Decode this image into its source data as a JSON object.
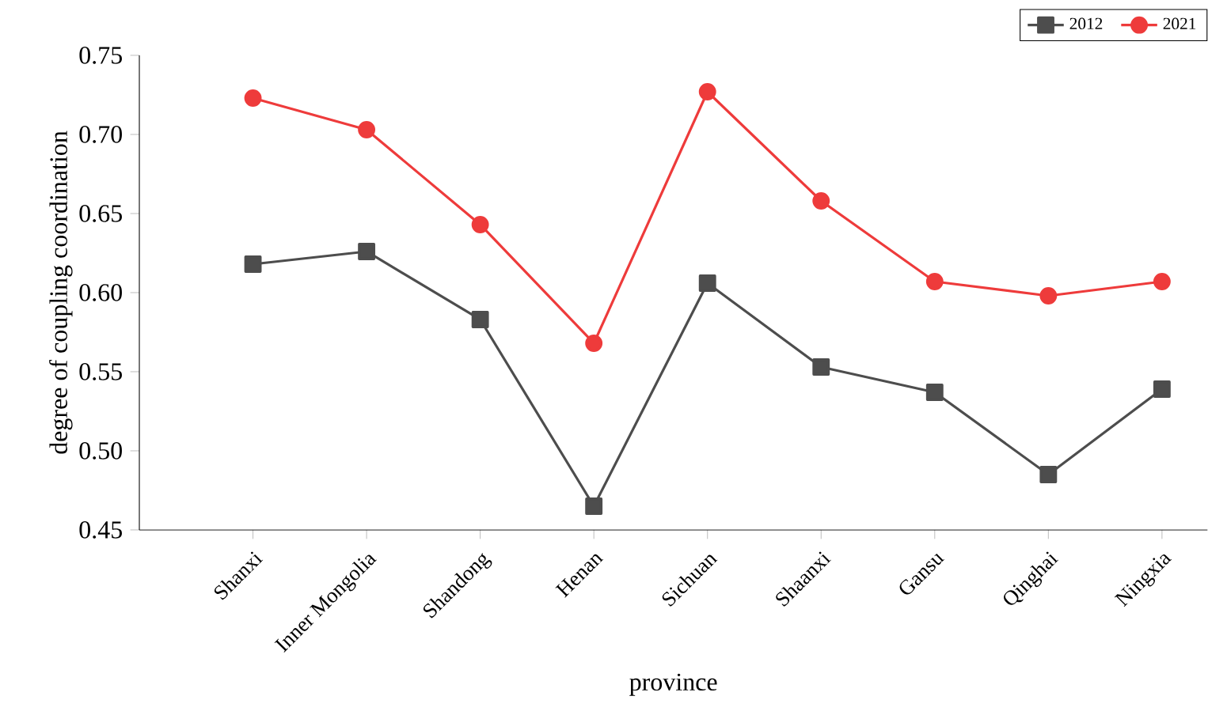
{
  "chart_data": {
    "type": "line",
    "xlabel": "province",
    "ylabel": "degree of coupling coordination",
    "categories": [
      "Shanxi",
      "Inner Mongolia",
      "Shandong",
      "Henan",
      "Sichuan",
      "Shaanxi",
      "Gansu",
      "Qinghai",
      "Ningxia"
    ],
    "series": [
      {
        "name": "2012",
        "color": "#4d4d4d",
        "marker": "square",
        "values": [
          0.618,
          0.626,
          0.583,
          0.465,
          0.606,
          0.553,
          0.537,
          0.485,
          0.539
        ]
      },
      {
        "name": "2021",
        "color": "#ee3b3b",
        "marker": "circle",
        "values": [
          0.723,
          0.703,
          0.643,
          0.568,
          0.727,
          0.658,
          0.607,
          0.598,
          0.607
        ]
      }
    ],
    "ylim": [
      0.45,
      0.75
    ],
    "yticks": [
      {
        "value": 0.45,
        "label": "0.45"
      },
      {
        "value": 0.5,
        "label": "0.50"
      },
      {
        "value": 0.55,
        "label": "0.55"
      },
      {
        "value": 0.6,
        "label": "0.60"
      },
      {
        "value": 0.65,
        "label": "0.65"
      },
      {
        "value": 0.7,
        "label": "0.70"
      },
      {
        "value": 0.75,
        "label": "0.75"
      }
    ],
    "legend": "top right",
    "line_style": "solid"
  }
}
